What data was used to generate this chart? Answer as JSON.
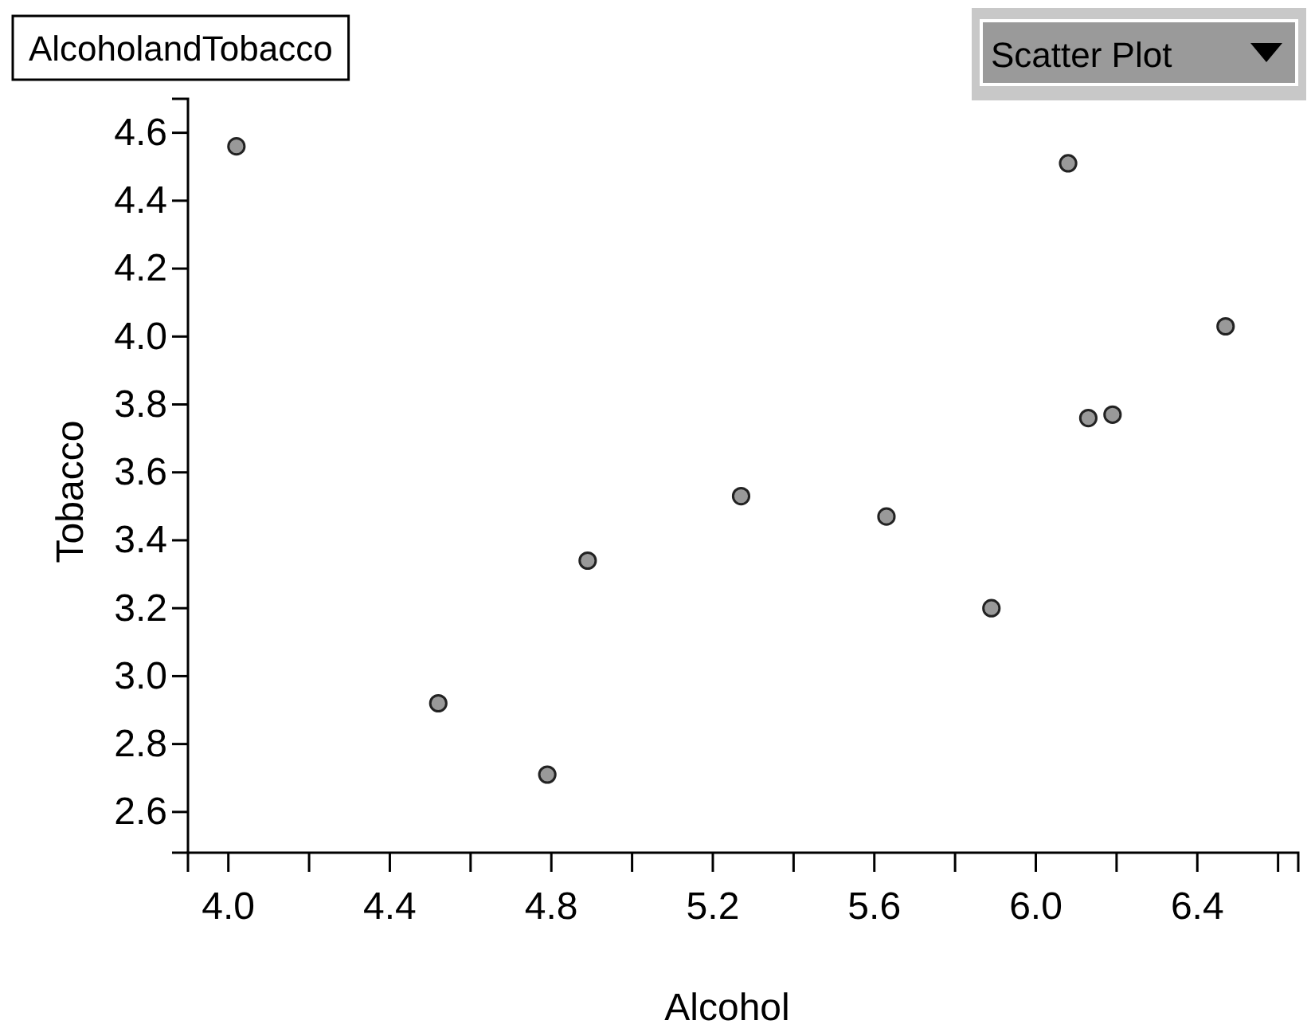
{
  "chart_data": {
    "type": "scatter",
    "title": "AlcoholandTobacco",
    "xlabel": "Alcohol",
    "ylabel": "Tobacco",
    "annotations": [
      "Scatter Plot"
    ],
    "x": [
      6.47,
      6.13,
      6.19,
      4.89,
      5.63,
      4.52,
      5.89,
      4.79,
      5.27,
      6.08,
      4.02
    ],
    "values": [
      4.03,
      3.76,
      3.77,
      3.34,
      3.47,
      2.92,
      3.2,
      2.71,
      3.53,
      4.51,
      4.56
    ],
    "color": "#999999",
    "marker": "circle",
    "grid": false,
    "xlim": [
      3.9,
      6.65
    ],
    "ylim": [
      2.48,
      4.7
    ],
    "xticks": [
      {
        "value": 4,
        "label": "4.0"
      },
      {
        "value": 4.2,
        "label": null
      },
      4.4,
      {
        "value": 4.6,
        "label": null
      },
      4.8,
      {
        "value": 5,
        "label": null
      },
      5.2,
      {
        "value": 5.4,
        "label": null
      },
      5.6,
      {
        "value": 5.8,
        "label": null
      },
      {
        "value": 6,
        "label": "6.0"
      },
      {
        "value": 6.2,
        "label": null
      },
      6.4,
      {
        "value": 6.6,
        "label": null
      }
    ],
    "yticks": [
      2.6,
      2.8,
      {
        "value": 3,
        "label": "3.0"
      },
      3.2,
      3.4,
      3.6,
      3.8,
      {
        "value": 4,
        "label": "4.0"
      },
      4.2,
      4.4,
      4.6
    ]
  }
}
